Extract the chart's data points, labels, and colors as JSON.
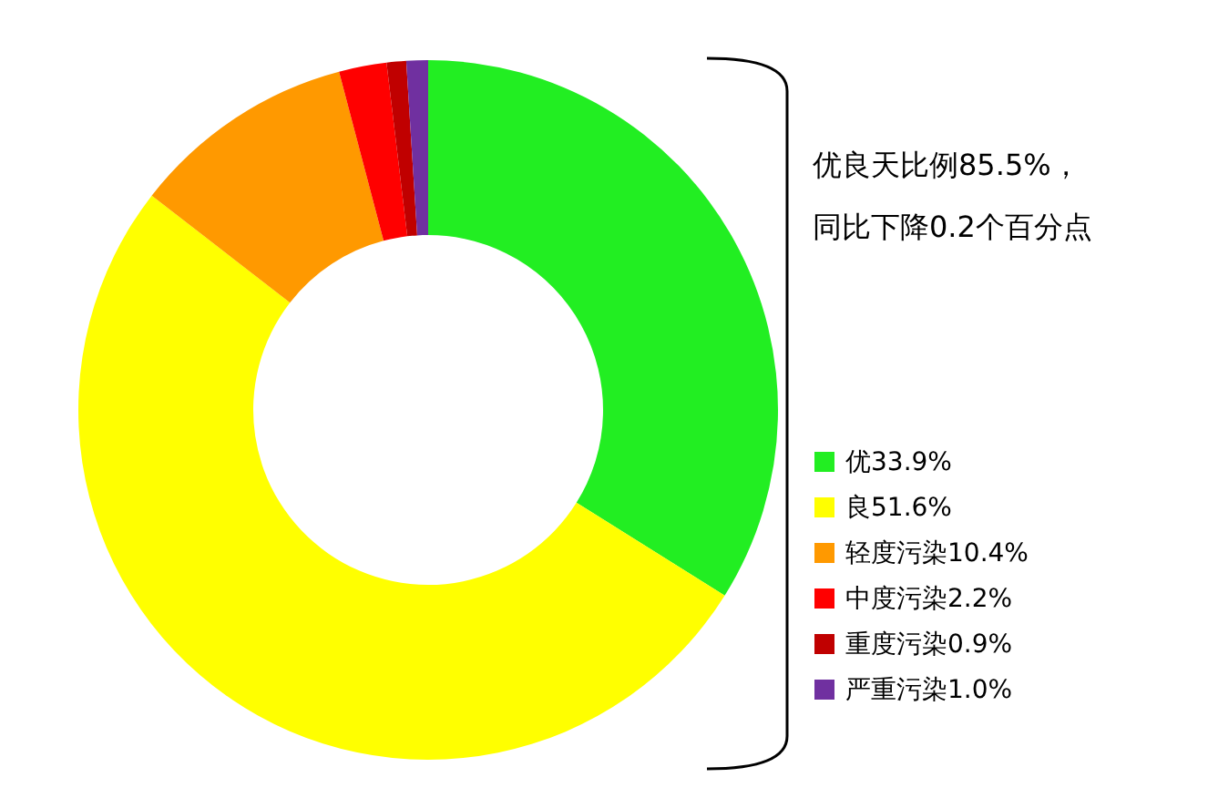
{
  "chart_data": {
    "type": "donut",
    "categories": [
      "优",
      "良",
      "轻度污染",
      "中度污染",
      "重度污染",
      "严重污染"
    ],
    "values": [
      33.9,
      51.6,
      10.4,
      2.2,
      0.9,
      1.0
    ],
    "value_labels": [
      "33.9%",
      "51.6%",
      "10.4%",
      "2.2%",
      "0.9%",
      "1.0%"
    ],
    "colors": [
      "#22ee22",
      "#ffff00",
      "#ff9900",
      "#ff0000",
      "#c00000",
      "#7030a0"
    ],
    "legend": "right",
    "annotations": [
      "优良天比例85.5%，",
      "同比下降0.2个百分点"
    ]
  }
}
